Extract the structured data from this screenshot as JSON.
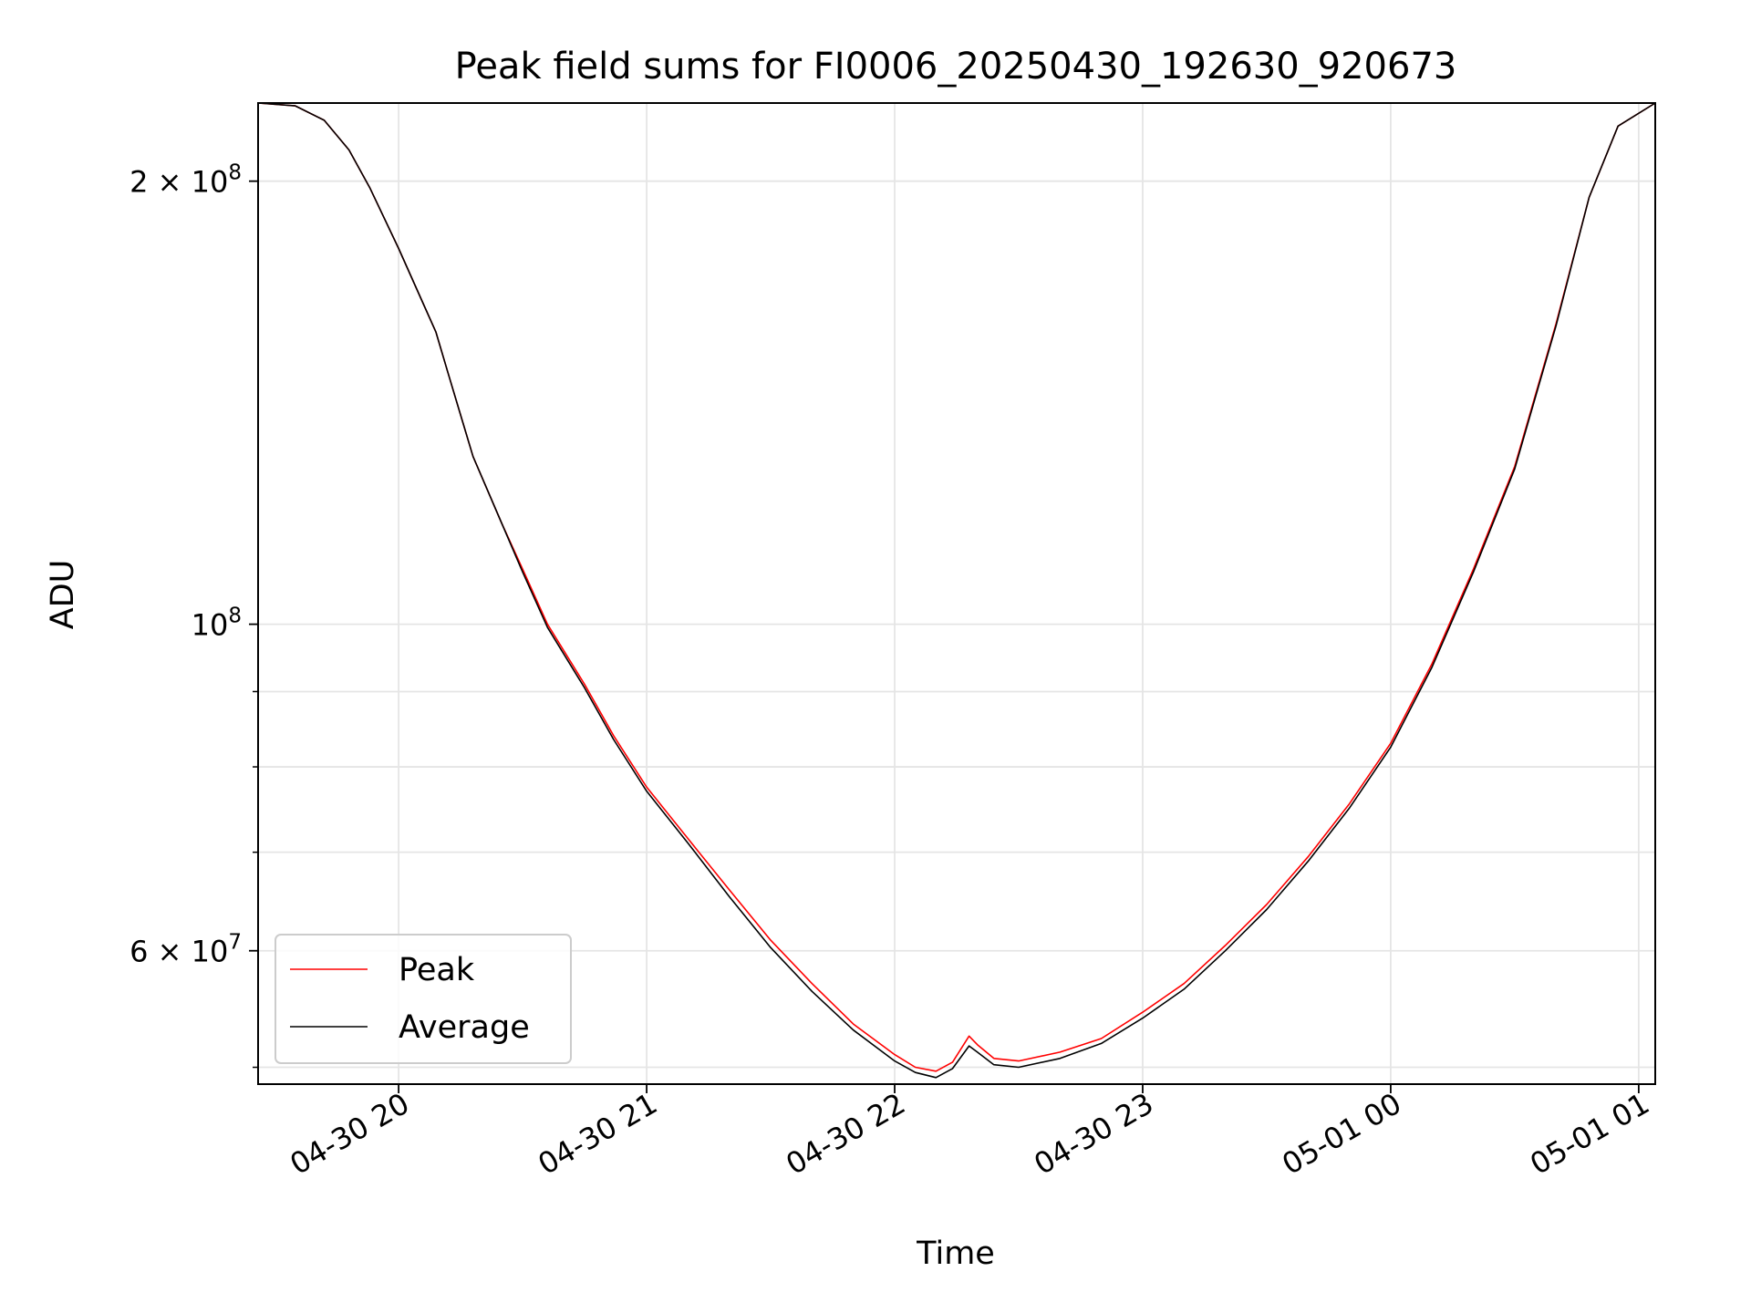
{
  "chart_data": {
    "type": "line",
    "title": "Peak field sums for FI0006_20250430_192630_920673",
    "xlabel": "Time",
    "ylabel": "ADU",
    "x_range": [
      "2025-04-30 19:26",
      "2025-05-01 01:04"
    ],
    "y_scale": "log",
    "ylim": [
      48700000,
      226000000
    ],
    "grid": true,
    "legend_position": "lower left",
    "x_ticks": [
      {
        "value": "2025-04-30 20:00",
        "label": "04-30 20"
      },
      {
        "value": "2025-04-30 21:00",
        "label": "04-30 21"
      },
      {
        "value": "2025-04-30 22:00",
        "label": "04-30 22"
      },
      {
        "value": "2025-04-30 23:00",
        "label": "04-30 23"
      },
      {
        "value": "2025-05-01 00:00",
        "label": "05-01 00"
      },
      {
        "value": "2025-05-01 01:00",
        "label": "05-01 01"
      }
    ],
    "y_ticks_major": [
      {
        "value": 200000000,
        "mant": "2",
        "times": " × ",
        "base": "10",
        "exp": "8"
      },
      {
        "value": 100000000,
        "mant": "",
        "times": "",
        "base": "10",
        "exp": "8"
      },
      {
        "value": 60000000,
        "mant": "6",
        "times": " × ",
        "base": "10",
        "exp": "7"
      }
    ],
    "y_ticks_minor": [
      50000000,
      70000000,
      80000000,
      90000000
    ],
    "series": [
      {
        "name": "Peak",
        "color": "#ff0000",
        "points": [
          [
            "2025-04-30 19:26",
            226000000
          ],
          [
            "2025-04-30 19:35",
            225000000
          ],
          [
            "2025-04-30 19:42",
            220000000
          ],
          [
            "2025-04-30 19:48",
            210000000
          ],
          [
            "2025-04-30 19:53",
            198000000
          ],
          [
            "2025-04-30 20:00",
            180000000
          ],
          [
            "2025-04-30 20:06",
            165000000
          ],
          [
            "2025-04-30 20:09",
            158000000
          ],
          [
            "2025-04-30 20:12",
            148000000
          ],
          [
            "2025-04-30 20:18",
            130000000
          ],
          [
            "2025-04-30 20:25",
            117000000
          ],
          [
            "2025-04-30 20:30",
            109000000
          ],
          [
            "2025-04-30 20:36",
            100000000
          ],
          [
            "2025-04-30 20:45",
            91000000
          ],
          [
            "2025-04-30 20:52",
            84000000
          ],
          [
            "2025-04-30 21:00",
            77500000
          ],
          [
            "2025-04-30 21:10",
            71500000
          ],
          [
            "2025-04-30 21:20",
            66000000
          ],
          [
            "2025-04-30 21:30",
            61000000
          ],
          [
            "2025-04-30 21:40",
            57000000
          ],
          [
            "2025-04-30 21:50",
            53500000
          ],
          [
            "2025-04-30 22:00",
            51000000
          ],
          [
            "2025-04-30 22:05",
            50000000
          ],
          [
            "2025-04-30 22:10",
            49700000
          ],
          [
            "2025-04-30 22:14",
            50400000
          ],
          [
            "2025-04-30 22:18",
            52500000
          ],
          [
            "2025-04-30 22:20",
            51800000
          ],
          [
            "2025-04-30 22:24",
            50700000
          ],
          [
            "2025-04-30 22:30",
            50500000
          ],
          [
            "2025-04-30 22:40",
            51200000
          ],
          [
            "2025-04-30 22:50",
            52300000
          ],
          [
            "2025-04-30 23:00",
            54500000
          ],
          [
            "2025-04-30 23:10",
            57000000
          ],
          [
            "2025-04-30 23:20",
            60500000
          ],
          [
            "2025-04-30 23:30",
            64500000
          ],
          [
            "2025-04-30 23:40",
            69500000
          ],
          [
            "2025-04-30 23:50",
            75500000
          ],
          [
            "2025-05-01 00:00",
            83000000
          ],
          [
            "2025-05-01 00:10",
            94000000
          ],
          [
            "2025-05-01 00:20",
            109000000
          ],
          [
            "2025-05-01 00:30",
            128000000
          ],
          [
            "2025-05-01 00:40",
            160000000
          ],
          [
            "2025-05-01 00:48",
            195000000
          ],
          [
            "2025-05-01 00:55",
            218000000
          ],
          [
            "2025-05-01 01:04",
            226000000
          ]
        ]
      },
      {
        "name": "Average",
        "color": "#000000",
        "points": [
          [
            "2025-04-30 19:26",
            226000000
          ],
          [
            "2025-04-30 19:35",
            225000000
          ],
          [
            "2025-04-30 19:42",
            220000000
          ],
          [
            "2025-04-30 19:48",
            210000000
          ],
          [
            "2025-04-30 19:53",
            198000000
          ],
          [
            "2025-04-30 20:00",
            180000000
          ],
          [
            "2025-04-30 20:06",
            165000000
          ],
          [
            "2025-04-30 20:09",
            158000000
          ],
          [
            "2025-04-30 20:12",
            148000000
          ],
          [
            "2025-04-30 20:18",
            130000000
          ],
          [
            "2025-04-30 20:25",
            117000000
          ],
          [
            "2025-04-30 20:30",
            108500000
          ],
          [
            "2025-04-30 20:36",
            99500000
          ],
          [
            "2025-04-30 20:45",
            90500000
          ],
          [
            "2025-04-30 20:52",
            83500000
          ],
          [
            "2025-04-30 21:00",
            77000000
          ],
          [
            "2025-04-30 21:10",
            71000000
          ],
          [
            "2025-04-30 21:20",
            65300000
          ],
          [
            "2025-04-30 21:30",
            60300000
          ],
          [
            "2025-04-30 21:40",
            56300000
          ],
          [
            "2025-04-30 21:50",
            53000000
          ],
          [
            "2025-04-30 22:00",
            50500000
          ],
          [
            "2025-04-30 22:05",
            49600000
          ],
          [
            "2025-04-30 22:10",
            49200000
          ],
          [
            "2025-04-30 22:14",
            49900000
          ],
          [
            "2025-04-30 22:18",
            51700000
          ],
          [
            "2025-04-30 22:20",
            51200000
          ],
          [
            "2025-04-30 22:24",
            50200000
          ],
          [
            "2025-04-30 22:30",
            50000000
          ],
          [
            "2025-04-30 22:40",
            50700000
          ],
          [
            "2025-04-30 22:50",
            51900000
          ],
          [
            "2025-04-30 23:00",
            54000000
          ],
          [
            "2025-04-30 23:10",
            56500000
          ],
          [
            "2025-04-30 23:20",
            60000000
          ],
          [
            "2025-04-30 23:30",
            64000000
          ],
          [
            "2025-04-30 23:40",
            69000000
          ],
          [
            "2025-04-30 23:50",
            75000000
          ],
          [
            "2025-05-01 00:00",
            82500000
          ],
          [
            "2025-05-01 00:10",
            93500000
          ],
          [
            "2025-05-01 00:20",
            108500000
          ],
          [
            "2025-05-01 00:30",
            127500000
          ],
          [
            "2025-05-01 00:40",
            159500000
          ],
          [
            "2025-05-01 00:48",
            195000000
          ],
          [
            "2025-05-01 00:55",
            218000000
          ],
          [
            "2025-05-01 01:04",
            226000000
          ]
        ]
      }
    ]
  }
}
